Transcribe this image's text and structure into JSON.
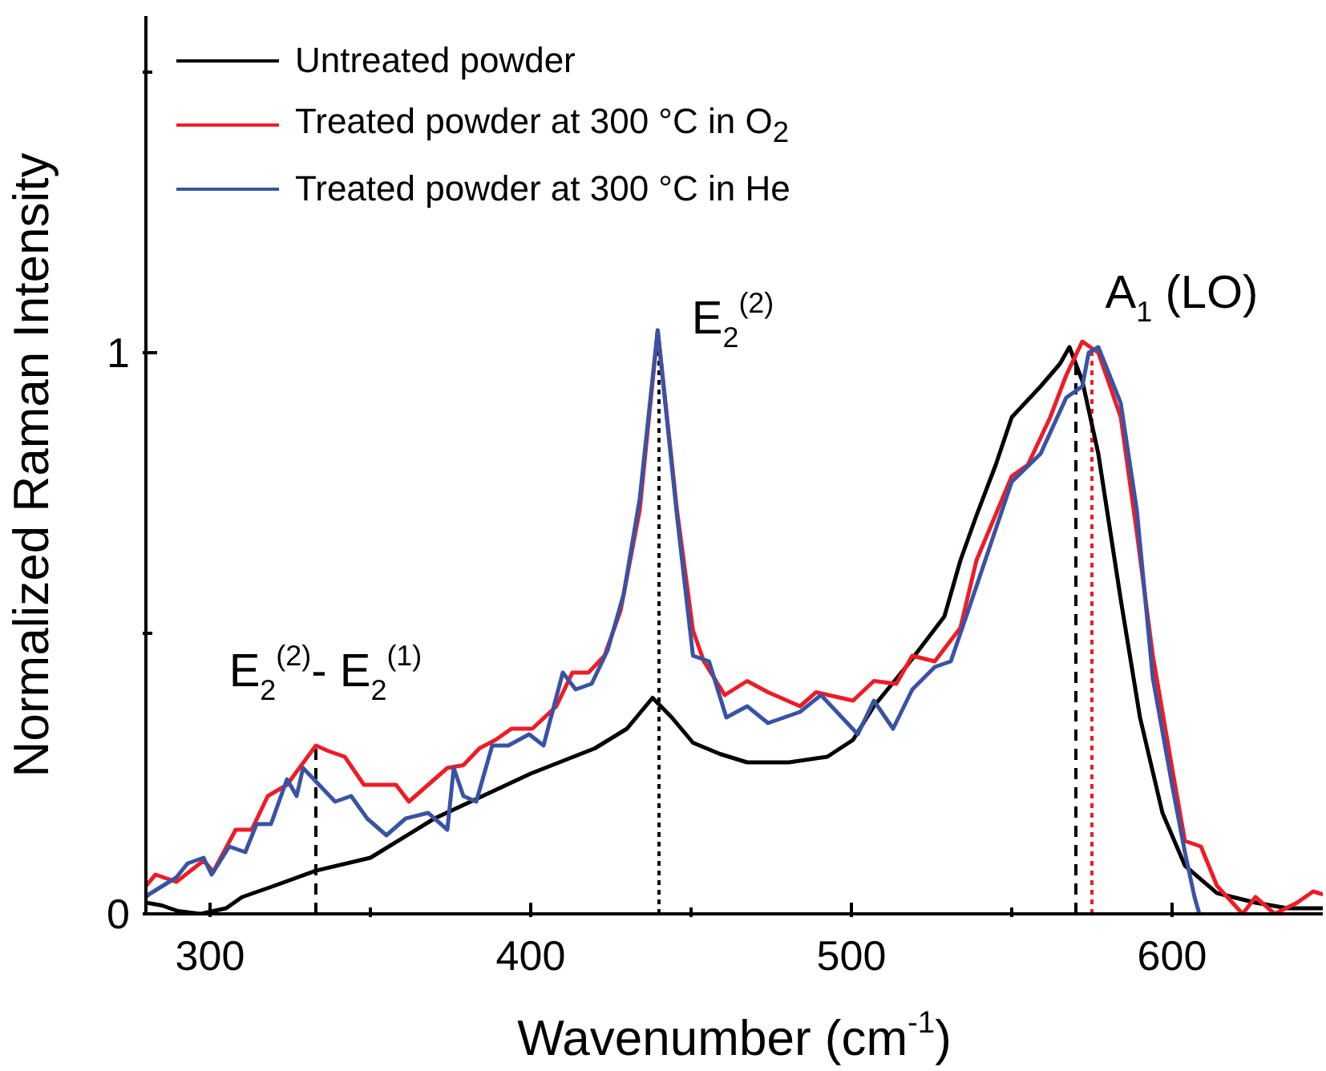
{
  "chart_data": {
    "type": "line",
    "xlabel": "Wavenumber (cm$^{-1}$)",
    "grid": false,
    "ylabel": "Normalized Raman Intensity",
    "xlim": [
      280,
      647
    ],
    "xticks": [
      300,
      {
        "value": 350,
        "label": null
      },
      400,
      {
        "value": 450,
        "label": null
      },
      500,
      {
        "value": 550,
        "label": null
      },
      600
    ],
    "ylim": [
      0,
      1.6
    ],
    "yticks": [
      0,
      {
        "value": 0.5,
        "label": null
      },
      1,
      {
        "value": 1.5,
        "label": null
      }
    ],
    "legend": "top left",
    "marker": "none",
    "line_style": "solid",
    "series": [
      {
        "name": "Untreated powder",
        "color": "#000000",
        "x": [
          280,
          285,
          290,
          297,
          305,
          310,
          320,
          333,
          350,
          370,
          385,
          400,
          420,
          430,
          438,
          444,
          450.6,
          459,
          467.5,
          480.5,
          492.5,
          500.5,
          507,
          517,
          529,
          534,
          539,
          545,
          550,
          559,
          565,
          568,
          572,
          577,
          584,
          590,
          597,
          604,
          614,
          626,
          636,
          647
        ],
        "values": [
          0.02,
          0.015,
          0.005,
          0.0,
          0.01,
          0.03,
          0.05,
          0.077,
          0.1,
          0.17,
          0.21,
          0.25,
          0.295,
          0.33,
          0.385,
          0.35,
          0.305,
          0.285,
          0.27,
          0.27,
          0.28,
          0.31,
          0.37,
          0.44,
          0.53,
          0.63,
          0.71,
          0.8,
          0.885,
          0.94,
          0.98,
          1.01,
          0.95,
          0.82,
          0.56,
          0.35,
          0.18,
          0.086,
          0.037,
          0.02,
          0.01,
          0.01
        ]
      },
      {
        "name": "Treated powder at 300 °C in O$_{2}$",
        "color": "#ee1c25",
        "x": [
          280,
          283,
          289.5,
          298,
          301,
          308,
          313,
          318,
          324,
          333,
          337,
          342,
          348,
          358,
          362,
          368,
          374,
          379,
          384,
          389,
          394,
          400.5,
          408,
          413,
          418,
          423,
          428,
          434,
          439.6,
          445.6,
          450.6,
          454,
          460.5,
          467.5,
          474,
          484,
          489,
          500.5,
          507,
          514,
          519,
          526,
          534,
          539,
          550,
          555,
          562,
          567,
          572,
          577,
          584,
          589,
          594,
          600,
          604,
          609,
          614,
          622,
          626,
          632,
          639,
          644,
          647
        ],
        "values": [
          0.05,
          0.07,
          0.057,
          0.095,
          0.075,
          0.15,
          0.15,
          0.21,
          0.23,
          0.3,
          0.29,
          0.28,
          0.23,
          0.23,
          0.2,
          0.23,
          0.26,
          0.265,
          0.295,
          0.31,
          0.33,
          0.33,
          0.37,
          0.43,
          0.43,
          0.46,
          0.54,
          0.72,
          1.04,
          0.72,
          0.505,
          0.45,
          0.39,
          0.415,
          0.395,
          0.37,
          0.395,
          0.38,
          0.415,
          0.41,
          0.46,
          0.45,
          0.51,
          0.63,
          0.78,
          0.8,
          0.885,
          0.96,
          1.02,
          1.0,
          0.885,
          0.68,
          0.46,
          0.26,
          0.13,
          0.12,
          0.05,
          0.0,
          0.03,
          0.0,
          0.02,
          0.04,
          0.035
        ]
      },
      {
        "name": "Treated powder at 300 °C in He",
        "color": "#3953a4",
        "x": [
          280,
          281,
          289.5,
          293,
          298,
          300.5,
          306,
          311,
          314.5,
          319,
          324,
          327,
          329,
          334,
          339,
          344,
          349,
          355,
          361,
          368,
          374,
          376,
          379,
          383,
          388,
          393,
          399.5,
          404,
          410,
          414,
          419,
          424,
          429,
          434,
          439.6,
          445.6,
          450.6,
          455.6,
          461,
          467.5,
          474,
          484,
          490.5,
          502,
          507,
          513,
          519,
          526,
          531,
          537,
          550,
          559,
          567,
          572,
          574,
          577,
          584,
          589,
          594,
          600,
          604,
          607,
          608.5
        ],
        "values": [
          0.03,
          0.035,
          0.065,
          0.09,
          0.1,
          0.07,
          0.12,
          0.11,
          0.16,
          0.16,
          0.24,
          0.21,
          0.26,
          0.23,
          0.2,
          0.21,
          0.17,
          0.14,
          0.17,
          0.18,
          0.15,
          0.26,
          0.21,
          0.2,
          0.3,
          0.3,
          0.32,
          0.3,
          0.43,
          0.4,
          0.41,
          0.47,
          0.57,
          0.74,
          1.04,
          0.71,
          0.46,
          0.45,
          0.35,
          0.37,
          0.34,
          0.36,
          0.39,
          0.32,
          0.38,
          0.33,
          0.4,
          0.44,
          0.45,
          0.55,
          0.77,
          0.82,
          0.92,
          0.94,
          1.0,
          1.01,
          0.91,
          0.72,
          0.42,
          0.23,
          0.11,
          0.03,
          0.0
        ]
      }
    ],
    "ref_lines": [
      {
        "axis": "x",
        "value": 333,
        "color": "#000000",
        "line_style": "dashed"
      },
      {
        "axis": "x",
        "value": 440,
        "color": "#000000",
        "line_style": "dotted"
      },
      {
        "axis": "x",
        "value": 570,
        "color": "#000000",
        "line_style": "dashed"
      },
      {
        "axis": "x",
        "value": 575,
        "color": "#ee1c25",
        "line_style": "dotted"
      }
    ],
    "annotations": [
      "E$_{2}$$^{(2)}$- E$_{2}$$^{(1)}$",
      "E$_{2}$$^{(2)}$",
      "A$_{1}$ (LO)"
    ]
  }
}
